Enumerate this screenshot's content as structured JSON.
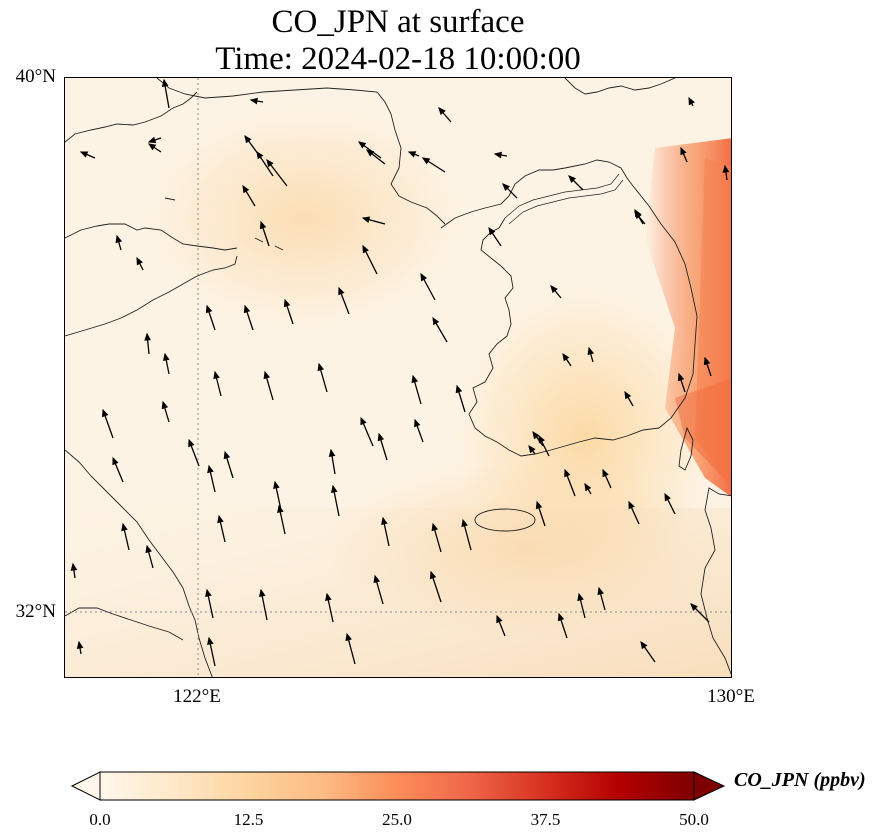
{
  "title": {
    "line1": "CO_JPN at surface",
    "line2": "Time: 2024-02-18 10:00:00"
  },
  "map": {
    "extent": {
      "lon_min": 119,
      "lon_max": 130,
      "lat_min": 31,
      "lat_max": 40
    },
    "gridlines": {
      "lon": [
        122
      ],
      "lat": [
        32
      ],
      "style": "dotted"
    },
    "lat_labels": [
      "40°N",
      "32°N"
    ],
    "lon_labels": [
      "122°E",
      "130°E"
    ],
    "field_colors": {
      "low": "#fff5e8",
      "mid": "#fbcf94",
      "high": "#f4683a"
    }
  },
  "colorbar": {
    "label": "CO_JPN (ppbv)",
    "ticks": [
      "0.0",
      "12.5",
      "25.0",
      "37.5",
      "50.0"
    ],
    "tick_values": [
      0,
      12.5,
      25,
      37.5,
      50
    ],
    "range": [
      0,
      50
    ],
    "colormap": "OrRd",
    "colors": [
      "#fff7ec",
      "#fee8c8",
      "#fdd49e",
      "#fdbb84",
      "#fc8d59",
      "#ef6548",
      "#d7301f",
      "#b30000",
      "#7f0000"
    ],
    "extend": "both"
  }
}
